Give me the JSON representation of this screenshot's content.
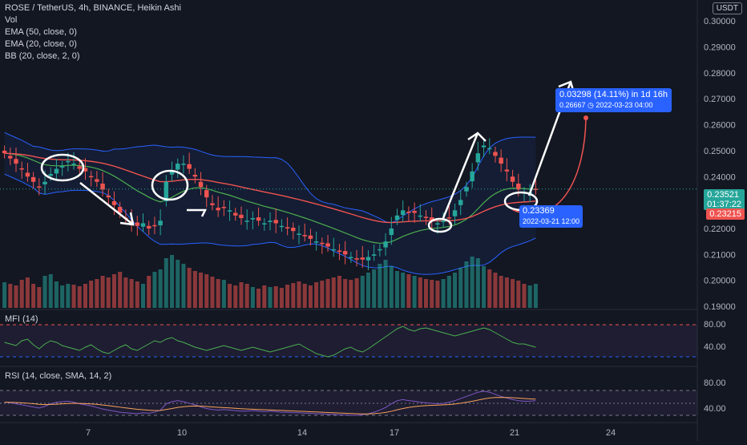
{
  "header": {
    "symbol_line": "ROSE / TetherUS, 4h, BINANCE, Heikin Ashi",
    "indicators": [
      "Vol",
      "EMA (50, close, 0)",
      "EMA (20, close, 0)",
      "BB (20, close, 2, 0)"
    ]
  },
  "currency_button": "USDT",
  "colors": {
    "background": "#131722",
    "up": "#26a69a",
    "down": "#ef5350",
    "bb": "#2962ff",
    "ema50": "#ef5350",
    "ema20": "#4caf50",
    "annotation": "#ffffff",
    "measure": "#2962ff"
  },
  "price_axis": {
    "ticks": [
      "0.30000",
      "0.29000",
      "0.28000",
      "0.27000",
      "0.26000",
      "0.25000",
      "0.24000",
      "0.22000",
      "0.21000",
      "0.20000",
      "0.19000"
    ],
    "current_price": "0.23521",
    "countdown": "01:37:22",
    "ema_price": "0.23215"
  },
  "time_axis": {
    "ticks": [
      "7",
      "10",
      "14",
      "17",
      "21",
      "24"
    ]
  },
  "measure_label": {
    "line1": "0.03298 (14.11%) in 1d 16h",
    "line2": "0.26667 ◷ 2022-03-23  04:00"
  },
  "start_label": {
    "line1": "0.23369",
    "line2": "2022-03-21 12:00"
  },
  "mfi": {
    "label": "MFI (14)",
    "ticks": [
      "80.00",
      "40.00"
    ]
  },
  "rsi": {
    "label": "RSI (14, close, SMA, 14, 2)",
    "ticks": [
      "80.00",
      "40.00"
    ]
  },
  "chart_data": {
    "type": "candlestick",
    "title": "ROSE / TetherUS, 4h, BINANCE, Heikin Ashi",
    "ylim": [
      0.19,
      0.305
    ],
    "x_ticks": [
      "7",
      "10",
      "14",
      "17",
      "21",
      "24"
    ],
    "candles_close": [
      0.249,
      0.247,
      0.245,
      0.243,
      0.24,
      0.238,
      0.236,
      0.238,
      0.241,
      0.243,
      0.244,
      0.246,
      0.245,
      0.243,
      0.242,
      0.24,
      0.238,
      0.235,
      0.232,
      0.229,
      0.226,
      0.224,
      0.222,
      0.221,
      0.222,
      0.22,
      0.221,
      0.223,
      0.238,
      0.242,
      0.245,
      0.245,
      0.243,
      0.24,
      0.236,
      0.232,
      0.229,
      0.227,
      0.228,
      0.227,
      0.225,
      0.224,
      0.223,
      0.224,
      0.223,
      0.222,
      0.223,
      0.222,
      0.221,
      0.22,
      0.219,
      0.218,
      0.217,
      0.216,
      0.215,
      0.214,
      0.213,
      0.212,
      0.211,
      0.21,
      0.209,
      0.208,
      0.208,
      0.209,
      0.21,
      0.212,
      0.215,
      0.22,
      0.225,
      0.227,
      0.226,
      0.226,
      0.225,
      0.224,
      0.223,
      0.222,
      0.223,
      0.224,
      0.227,
      0.231,
      0.236,
      0.242,
      0.249,
      0.252,
      0.251,
      0.248,
      0.245,
      0.242,
      0.238,
      0.235,
      0.234,
      0.234,
      0.235
    ],
    "volume": [
      32,
      30,
      28,
      35,
      38,
      30,
      26,
      40,
      42,
      33,
      28,
      30,
      29,
      27,
      30,
      34,
      36,
      40,
      38,
      42,
      45,
      38,
      36,
      33,
      30,
      40,
      45,
      48,
      62,
      66,
      60,
      55,
      50,
      46,
      44,
      42,
      39,
      36,
      35,
      30,
      28,
      32,
      30,
      26,
      24,
      28,
      26,
      27,
      25,
      29,
      31,
      33,
      30,
      28,
      32,
      34,
      36,
      38,
      40,
      36,
      35,
      37,
      40,
      44,
      48,
      55,
      60,
      52,
      46,
      44,
      42,
      40,
      38,
      36,
      35,
      34,
      36,
      40,
      44,
      50,
      58,
      64,
      62,
      52,
      48,
      44,
      40,
      38,
      36,
      34,
      30,
      28,
      30
    ]
  }
}
